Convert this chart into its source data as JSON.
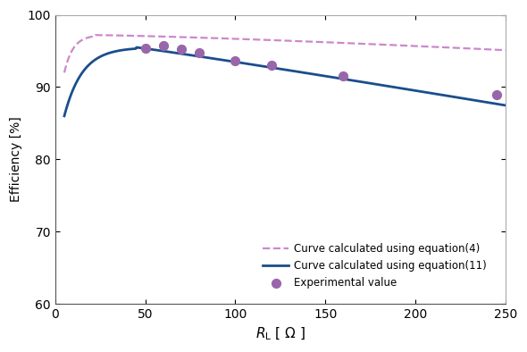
{
  "title": "",
  "xlabel": "$R_{\\mathrm{L}}$ [ $\\Omega$ ]",
  "ylabel": "Efficiency [%]",
  "xlim": [
    0,
    250
  ],
  "ylim": [
    60,
    100
  ],
  "yticks": [
    60,
    70,
    80,
    90,
    100
  ],
  "xticks": [
    0,
    50,
    100,
    150,
    200,
    250
  ],
  "color_eq4": "#CC88CC",
  "color_eq11": "#1A4E8C",
  "color_exp": "#9966AA",
  "legend_labels": [
    "Curve calculated using equation(4)",
    "Curve calculated using equation(11)",
    "Experimental value"
  ],
  "exp_x": [
    50,
    60,
    70,
    80,
    100,
    120,
    160,
    245
  ],
  "exp_y": [
    95.4,
    95.7,
    95.3,
    94.7,
    93.7,
    93.0,
    91.6,
    88.9
  ],
  "eq4_start_x": 5,
  "eq4_start_y": 92.0,
  "eq4_peak_x": 22,
  "eq4_peak_y": 97.2,
  "eq4_end_y": 95.0,
  "eq11_start_x": 5,
  "eq11_start_y": 86.0,
  "eq11_peak_x": 45,
  "eq11_peak_y": 95.5,
  "eq11_end_y": 89.5
}
